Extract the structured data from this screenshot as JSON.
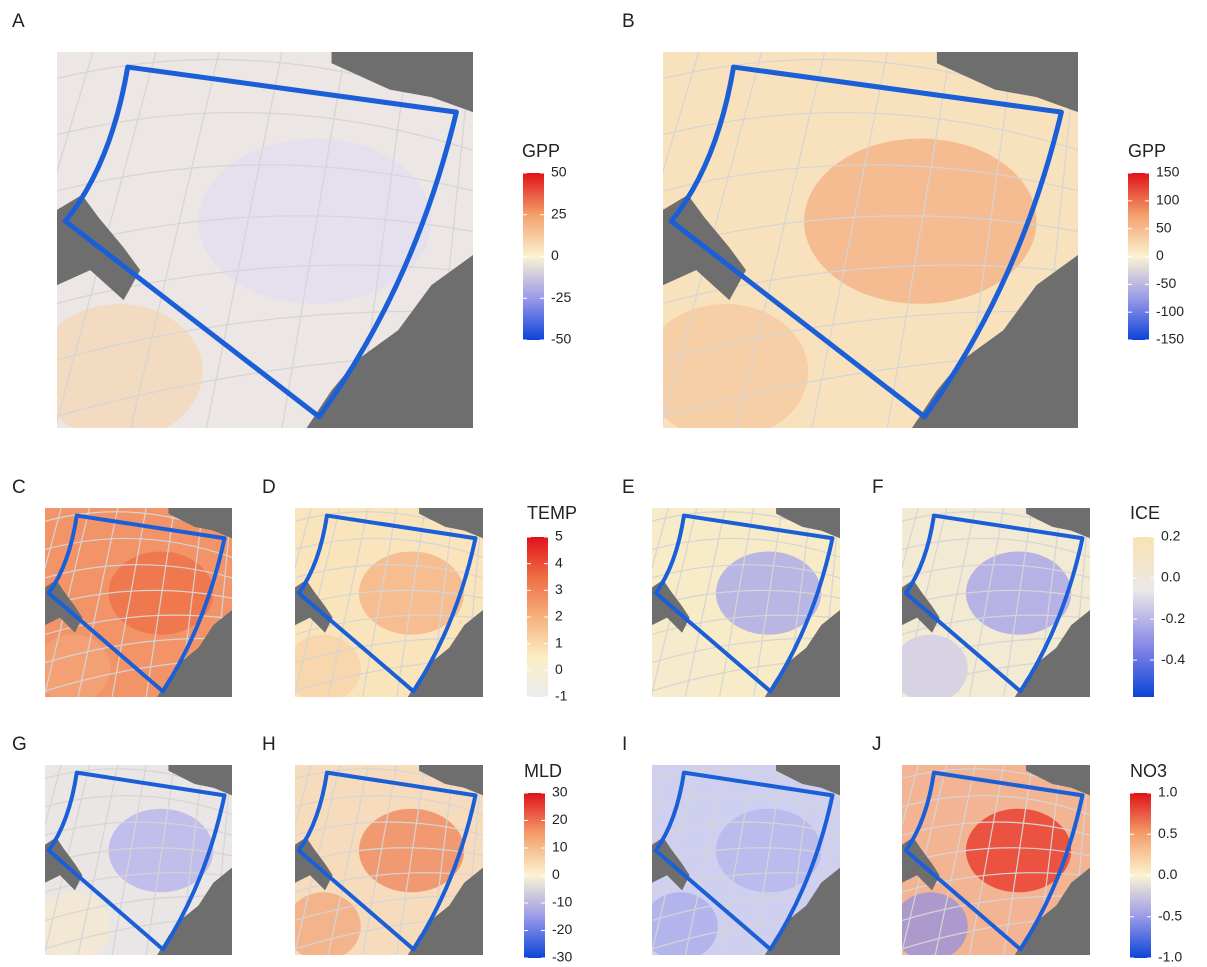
{
  "panels": [
    {
      "label": "A"
    },
    {
      "label": "B"
    },
    {
      "label": "C"
    },
    {
      "label": "D"
    },
    {
      "label": "E"
    },
    {
      "label": "F"
    },
    {
      "label": "G"
    },
    {
      "label": "H"
    },
    {
      "label": "I"
    },
    {
      "label": "J"
    }
  ],
  "legends": [
    {
      "title": "GPP",
      "lim": [
        -50,
        50
      ],
      "ticks": [
        50,
        25,
        0,
        -25,
        -50
      ],
      "colors": [
        "#0b44d8",
        "#9a9ae8",
        "#fbf3d2",
        "#f3a06a",
        "#e0121a"
      ]
    },
    {
      "title": "GPP",
      "lim": [
        -150,
        150
      ],
      "ticks": [
        150,
        100,
        50,
        0,
        -50,
        -100,
        -150
      ],
      "colors": [
        "#0b44d8",
        "#9a9ae8",
        "#fbf3d2",
        "#f3a06a",
        "#e0121a"
      ]
    },
    {
      "title": "TEMP",
      "lim": [
        -1,
        5
      ],
      "ticks": [
        5,
        4,
        3,
        2,
        1,
        0,
        -1
      ],
      "colors": [
        "#ecebef",
        "#fbeec4",
        "#f6b07c",
        "#ee6e45",
        "#e0121a"
      ]
    },
    {
      "title": "ICE",
      "lim": [
        -0.58,
        0.2
      ],
      "ticks": [
        0.2,
        {
          "value": 0,
          "label": "0.0"
        },
        -0.2,
        -0.4
      ],
      "colors": [
        "#0b44d8",
        "#8c8ce6",
        "#ebe8e6",
        "#fbe2b4"
      ]
    },
    {
      "title": "MLD",
      "lim": [
        -30,
        30
      ],
      "ticks": [
        30,
        20,
        10,
        0,
        -10,
        -20,
        -30
      ],
      "colors": [
        "#0b44d8",
        "#9a9ae8",
        "#fbf3d2",
        "#f3a06a",
        "#e0121a"
      ]
    },
    {
      "title": "NO3",
      "lim": [
        -1,
        1
      ],
      "ticks": [
        {
          "value": 1,
          "label": "1.0"
        },
        0.5,
        {
          "value": 0,
          "label": "0.0"
        },
        -0.5,
        {
          "value": -1,
          "label": "-1.0"
        }
      ],
      "colors": [
        "#0b44d8",
        "#9a9ae8",
        "#fbf3d2",
        "#f3a06a",
        "#e0121a"
      ]
    }
  ]
}
